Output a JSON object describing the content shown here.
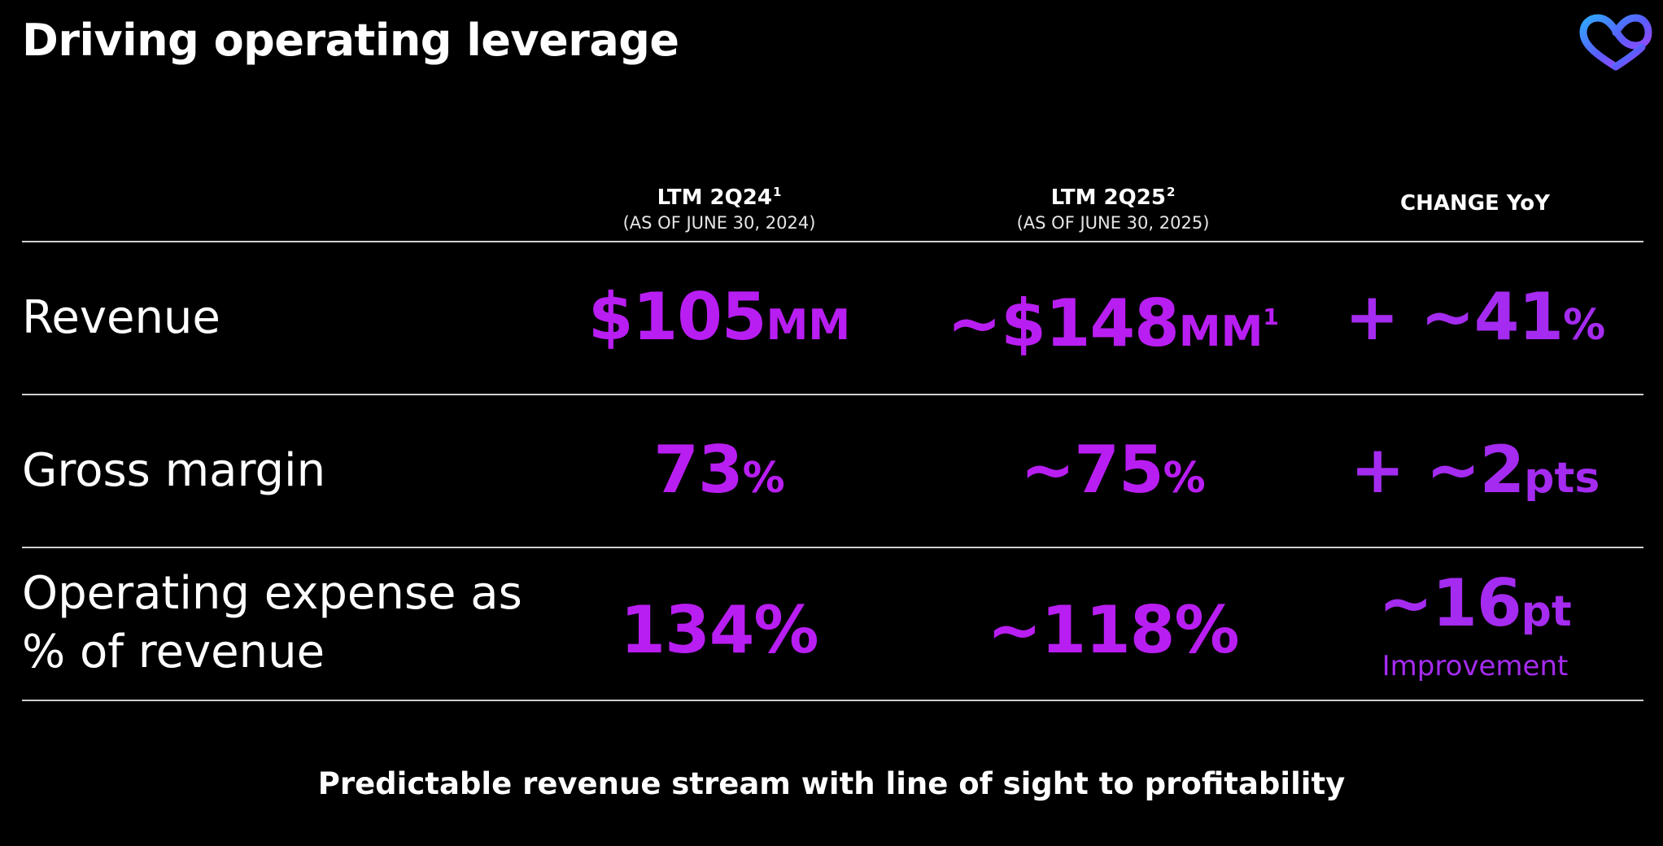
{
  "slide": {
    "title": "Driving operating leverage",
    "footer": "Predictable revenue stream with line of sight to profitability"
  },
  "colors": {
    "background": "#000000",
    "text": "#ffffff",
    "accent_purple": "#b81ef2",
    "accent_violet": "#a52bf0",
    "logo_gradient": [
      "#2fa8ff",
      "#5b5cff",
      "#c03cff"
    ]
  },
  "logo": {
    "icon": "infinity-heart-logo"
  },
  "columns": [
    {
      "label": "LTM 2Q24",
      "footnote": "1",
      "sub": "(AS OF JUNE 30, 2024)"
    },
    {
      "label": "LTM 2Q25",
      "footnote": "2",
      "sub": "(AS OF JUNE 30, 2025)"
    },
    {
      "label": "CHANGE YoY"
    }
  ],
  "rows": [
    {
      "label_line1": "Revenue",
      "v1": {
        "num": "$105",
        "unit": "MM"
      },
      "v2": {
        "num": "~$148",
        "unit": "MM",
        "footnote": "1"
      },
      "change": {
        "num": "+ ~41",
        "unit": "%"
      }
    },
    {
      "label_line1": "Gross margin",
      "v1": {
        "num": "73",
        "unit": "%"
      },
      "v2": {
        "num": "~75",
        "unit": "%"
      },
      "change": {
        "num": "+ ~2",
        "unit": "pts"
      }
    },
    {
      "label_line1": "Operating expense as",
      "label_line2": "% of revenue",
      "v1": {
        "num": "134%"
      },
      "v2": {
        "num": "~118%"
      },
      "change": {
        "num": "~16",
        "unit": "pt",
        "note": "Improvement"
      }
    }
  ]
}
